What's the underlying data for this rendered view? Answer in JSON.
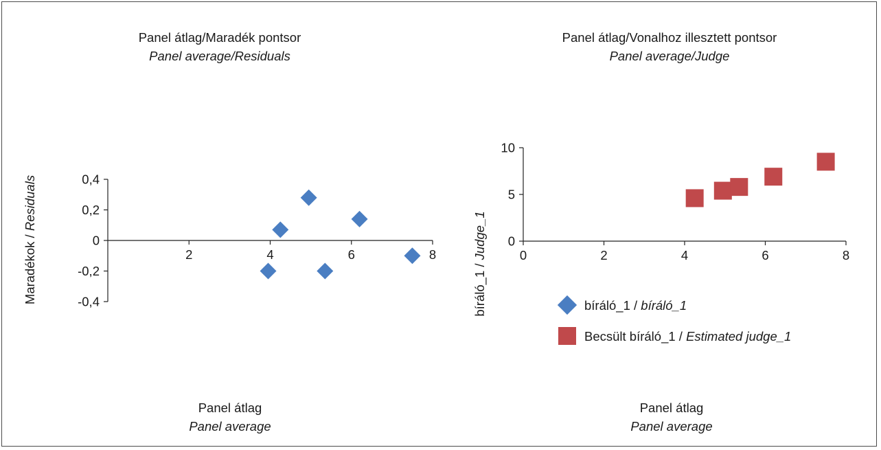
{
  "colors": {
    "diamond": "#4a7ec2",
    "square": "#c0494b",
    "axis": "#222222"
  },
  "chart_data": [
    {
      "type": "scatter",
      "title": "Panel átlag/Maradék pontsor",
      "subtitle": "Panel average/Residuals",
      "xlabel": "Panel átlag",
      "xlabel_sub": "Panel average",
      "ylabel": "Maradékok / ",
      "ylabel_italic": "Residuals",
      "xlim": [
        0,
        8
      ],
      "ylim": [
        -0.4,
        0.4
      ],
      "x_ticks": [
        {
          "value": 2,
          "label": "2"
        },
        {
          "value": 4,
          "label": "4"
        },
        {
          "value": 6,
          "label": "6"
        },
        {
          "value": 8,
          "label": "8"
        }
      ],
      "y_ticks": [
        {
          "value": 0.4,
          "label": "0,4"
        },
        {
          "value": 0.2,
          "label": "0,2"
        },
        {
          "value": 0,
          "label": "0"
        },
        {
          "value": -0.2,
          "label": "-0,2"
        },
        {
          "value": -0.4,
          "label": "-0,4"
        }
      ],
      "series": [
        {
          "marker": "diamond",
          "color": "#4a7ec2",
          "points": [
            {
              "x": 3.95,
              "y": -0.2
            },
            {
              "x": 4.25,
              "y": 0.07
            },
            {
              "x": 4.95,
              "y": 0.28
            },
            {
              "x": 5.35,
              "y": -0.2
            },
            {
              "x": 6.2,
              "y": 0.14
            },
            {
              "x": 7.5,
              "y": -0.1
            }
          ]
        }
      ]
    },
    {
      "type": "scatter",
      "title": "Panel átlag/Vonalhoz illesztett pontsor",
      "subtitle": "Panel average/Judge",
      "xlabel": "Panel átlag",
      "xlabel_sub": "Panel average",
      "ylabel": "bíráló_1 / ",
      "ylabel_italic": "Judge_1",
      "xlim": [
        0,
        8
      ],
      "ylim": [
        0,
        10
      ],
      "x_ticks": [
        {
          "value": 0,
          "label": "0"
        },
        {
          "value": 2,
          "label": "2"
        },
        {
          "value": 4,
          "label": "4"
        },
        {
          "value": 6,
          "label": "6"
        },
        {
          "value": 8,
          "label": "8"
        }
      ],
      "y_ticks": [
        {
          "value": 0,
          "label": "0"
        },
        {
          "value": 5,
          "label": "5"
        },
        {
          "value": 10,
          "label": "10"
        }
      ],
      "legend_placement": "bottom",
      "series": [
        {
          "name": "bíráló_1 / ",
          "name_italic": "bíráló_1",
          "marker": "diamond",
          "color": "#4a7ec2",
          "points": []
        },
        {
          "name": "Becsült bíráló_1 / ",
          "name_italic": "Estimated judge_1",
          "marker": "square",
          "color": "#c0494b",
          "points": [
            {
              "x": 4.25,
              "y": 4.6
            },
            {
              "x": 4.95,
              "y": 5.4
            },
            {
              "x": 5.35,
              "y": 5.8
            },
            {
              "x": 6.2,
              "y": 6.9
            },
            {
              "x": 7.5,
              "y": 8.5
            }
          ]
        }
      ]
    }
  ]
}
